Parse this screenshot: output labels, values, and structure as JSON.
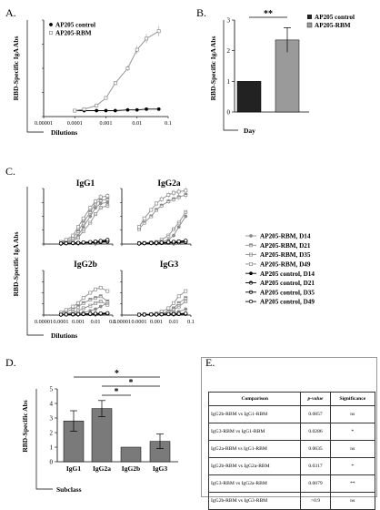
{
  "panels": {
    "A": "A.",
    "B": "B.",
    "C": "C.",
    "D": "D.",
    "E": "E."
  },
  "chart_data": [
    {
      "id": "A",
      "type": "line",
      "ylabel": "RBD-Specific IgA Abs",
      "xlabel": "Dilutions",
      "xscale": "log",
      "xticks": [
        "0.00001",
        "0.0001",
        "0.001",
        "0.01",
        "0.1"
      ],
      "legend": [
        "AP205 control",
        "AP205-RBM"
      ],
      "legend_position": "top-left",
      "series": [
        {
          "name": "AP205 control",
          "x": [
            0.0001,
            0.0002,
            0.0005,
            0.001,
            0.002,
            0.005,
            0.01,
            0.02,
            0.05
          ],
          "y": [
            0.08,
            0.08,
            0.08,
            0.08,
            0.08,
            0.09,
            0.09,
            0.1,
            0.1
          ]
        },
        {
          "name": "AP205-RBM",
          "x": [
            0.0001,
            0.0002,
            0.0005,
            0.001,
            0.002,
            0.005,
            0.01,
            0.02,
            0.05
          ],
          "y": [
            0.08,
            0.1,
            0.15,
            0.25,
            0.45,
            0.65,
            0.9,
            1.05,
            1.15
          ]
        }
      ]
    },
    {
      "id": "B",
      "type": "bar",
      "ylabel": "RBD-Specific IgA Abs",
      "xlabel": "Day",
      "ylim": [
        0,
        3
      ],
      "yticks": [
        "0",
        "1",
        "2",
        "3"
      ],
      "legend": [
        "AP205 control",
        "AP205-RBM"
      ],
      "legend_position": "top-right",
      "categories": [
        "AP205 control",
        "AP205-RBM"
      ],
      "values": [
        1,
        2.35
      ],
      "errors": [
        0,
        0.4
      ],
      "significance": "**"
    },
    {
      "id": "C",
      "type": "line",
      "ylabel": "RBD-Specific IgA Abs",
      "xlabel": "Dilutions",
      "xscale": "log",
      "xticks": [
        "0.00001",
        "0.0001",
        "0.001",
        "0.01",
        "0.1"
      ],
      "x": [
        0.0001,
        0.0002,
        0.0005,
        0.001,
        0.002,
        0.005,
        0.01,
        0.02,
        0.05
      ],
      "legend": [
        "AP205-RBM, D14",
        "AP205-RBM, D21",
        "AP205-RBM, D35",
        "AP205-RBM, D49",
        "AP205 control, D14",
        "AP205 control, D21",
        "AP205 control, D35",
        "AP205 control, D49"
      ],
      "subplots": [
        {
          "title": "IgG1",
          "series": [
            {
              "name": "AP205-RBM, D14",
              "y": [
                0.05,
                0.1,
                0.2,
                0.4,
                0.8,
                1.3,
                1.7,
                1.9,
                1.95
              ]
            },
            {
              "name": "AP205-RBM, D21",
              "y": [
                0.08,
                0.15,
                0.3,
                0.6,
                1.0,
                1.5,
                1.9,
                2.05,
                2.1
              ]
            },
            {
              "name": "AP205-RBM, D35",
              "y": [
                0.05,
                0.08,
                0.15,
                0.3,
                0.6,
                1.0,
                1.4,
                1.7,
                1.8
              ]
            },
            {
              "name": "AP205-RBM, D49",
              "y": [
                0.1,
                0.2,
                0.4,
                0.8,
                1.2,
                1.7,
                2.0,
                2.2,
                2.25
              ]
            },
            {
              "name": "AP205 control, D14",
              "y": [
                0.02,
                0.03,
                0.03,
                0.04,
                0.05,
                0.06,
                0.07,
                0.08,
                0.1
              ]
            },
            {
              "name": "AP205 control, D21",
              "y": [
                0.03,
                0.04,
                0.05,
                0.06,
                0.07,
                0.08,
                0.1,
                0.12,
                0.15
              ]
            },
            {
              "name": "AP205 control, D35",
              "y": [
                0.02,
                0.03,
                0.04,
                0.05,
                0.06,
                0.07,
                0.08,
                0.1,
                0.12
              ]
            },
            {
              "name": "AP205 control, D49",
              "y": [
                0.03,
                0.04,
                0.05,
                0.06,
                0.08,
                0.1,
                0.12,
                0.15,
                0.2
              ]
            }
          ]
        },
        {
          "title": "IgG2a",
          "series": [
            {
              "name": "AP205-RBM, D14",
              "y": [
                0.05,
                0.05,
                0.06,
                0.08,
                0.1,
                0.2,
                0.4,
                0.8,
                1.3
              ]
            },
            {
              "name": "AP205-RBM, D21",
              "y": [
                0.7,
                1.0,
                1.3,
                1.6,
                1.8,
                2.0,
                2.1,
                2.2,
                2.3
              ]
            },
            {
              "name": "AP205-RBM, D35",
              "y": [
                0.05,
                0.06,
                0.08,
                0.1,
                0.2,
                0.4,
                0.7,
                1.0,
                1.5
              ]
            },
            {
              "name": "AP205-RBM, D49",
              "y": [
                0.8,
                1.2,
                1.6,
                1.9,
                2.1,
                2.3,
                2.4,
                2.45,
                2.5
              ]
            },
            {
              "name": "AP205 control, D14",
              "y": [
                0.02,
                0.03,
                0.03,
                0.04,
                0.04,
                0.05,
                0.06,
                0.07,
                0.08
              ]
            },
            {
              "name": "AP205 control, D21",
              "y": [
                0.03,
                0.04,
                0.05,
                0.06,
                0.07,
                0.08,
                0.1,
                0.12,
                0.15
              ]
            },
            {
              "name": "AP205 control, D35",
              "y": [
                0.02,
                0.03,
                0.04,
                0.05,
                0.05,
                0.06,
                0.07,
                0.08,
                0.1
              ]
            },
            {
              "name": "AP205 control, D49",
              "y": [
                0.03,
                0.04,
                0.05,
                0.06,
                0.07,
                0.09,
                0.11,
                0.13,
                0.16
              ]
            }
          ]
        },
        {
          "title": "IgG2b",
          "series": [
            {
              "name": "AP205-RBM, D14",
              "y": [
                0.05,
                0.06,
                0.08,
                0.1,
                0.15,
                0.25,
                0.35,
                0.5,
                0.7
              ]
            },
            {
              "name": "AP205-RBM, D21",
              "y": [
                0.1,
                0.2,
                0.35,
                0.5,
                0.7,
                0.9,
                1.0,
                1.1,
                0.8
              ]
            },
            {
              "name": "AP205-RBM, D35",
              "y": [
                0.05,
                0.08,
                0.15,
                0.25,
                0.4,
                0.55,
                0.7,
                0.8,
                0.6
              ]
            },
            {
              "name": "AP205-RBM, D49",
              "y": [
                0.15,
                0.3,
                0.5,
                0.7,
                1.0,
                1.3,
                1.5,
                1.6,
                1.4
              ]
            },
            {
              "name": "AP205 control, D14",
              "y": [
                0.02,
                0.03,
                0.03,
                0.04,
                0.04,
                0.05,
                0.05,
                0.06,
                0.07
              ]
            },
            {
              "name": "AP205 control, D21",
              "y": [
                0.03,
                0.03,
                0.04,
                0.05,
                0.06,
                0.07,
                0.08,
                0.09,
                0.1
              ]
            },
            {
              "name": "AP205 control, D35",
              "y": [
                0.02,
                0.03,
                0.03,
                0.04,
                0.05,
                0.05,
                0.06,
                0.07,
                0.08
              ]
            },
            {
              "name": "AP205 control, D49",
              "y": [
                0.03,
                0.04,
                0.05,
                0.06,
                0.07,
                0.08,
                0.09,
                0.1,
                0.12
              ]
            }
          ]
        },
        {
          "title": "IgG3",
          "series": [
            {
              "name": "AP205-RBM, D14",
              "y": [
                0.03,
                0.03,
                0.04,
                0.05,
                0.06,
                0.08,
                0.12,
                0.2,
                0.35
              ]
            },
            {
              "name": "AP205-RBM, D21",
              "y": [
                0.03,
                0.04,
                0.05,
                0.06,
                0.1,
                0.2,
                0.4,
                0.7,
                1.0
              ]
            },
            {
              "name": "AP205-RBM, D35",
              "y": [
                0.03,
                0.03,
                0.04,
                0.05,
                0.08,
                0.15,
                0.3,
                0.5,
                0.8
              ]
            },
            {
              "name": "AP205-RBM, D49",
              "y": [
                0.04,
                0.05,
                0.06,
                0.1,
                0.2,
                0.4,
                0.7,
                1.1,
                1.4
              ]
            },
            {
              "name": "AP205 control, D14",
              "y": [
                0.02,
                0.02,
                0.03,
                0.03,
                0.04,
                0.04,
                0.05,
                0.05,
                0.06
              ]
            },
            {
              "name": "AP205 control, D21",
              "y": [
                0.02,
                0.03,
                0.03,
                0.04,
                0.04,
                0.05,
                0.06,
                0.07,
                0.08
              ]
            },
            {
              "name": "AP205 control, D35",
              "y": [
                0.02,
                0.02,
                0.03,
                0.03,
                0.04,
                0.05,
                0.05,
                0.06,
                0.07
              ]
            },
            {
              "name": "AP205 control, D49",
              "y": [
                0.02,
                0.03,
                0.04,
                0.04,
                0.05,
                0.06,
                0.07,
                0.08,
                0.1
              ]
            }
          ]
        }
      ]
    },
    {
      "id": "D",
      "type": "bar",
      "ylabel": "RBD-Specific Abs",
      "xlabel": "Subclass",
      "ylim": [
        0,
        5
      ],
      "yticks": [
        "0",
        "1",
        "2",
        "3",
        "4",
        "5"
      ],
      "categories": [
        "IgG1",
        "IgG2a",
        "IgG2b",
        "IgG3"
      ],
      "values": [
        2.8,
        3.65,
        1.0,
        1.4
      ],
      "errors": [
        0.7,
        0.55,
        0,
        0.5
      ],
      "significance": [
        "*",
        "*",
        "*"
      ]
    }
  ],
  "table": {
    "headers": [
      "Comparison",
      "p-value",
      "Significance"
    ],
    "rows": [
      [
        "IgG2b-RBM  vs  IgG1-RBM",
        "0.0857",
        "ns"
      ],
      [
        "IgG3-RBM  vs  IgG1-RBM",
        "0.0286",
        "*"
      ],
      [
        "IgG2a-RBM  vs  IgG1-RBM",
        "0.0635",
        "ns"
      ],
      [
        "IgG2b-RBM  vs  IgG2a-RBM",
        "0.0317",
        "*"
      ],
      [
        "IgG3-RBM  vs  IgG2a-RBM",
        "0.0079",
        "**"
      ],
      [
        "IgG2b-RBM  vs  IgG3-RBM",
        ">0.9",
        "ns"
      ]
    ]
  },
  "colors": {
    "rbm": "#8c8c8c",
    "control": "#000000",
    "bar_control": "#222222",
    "bar_rbm": "#9a9a9a",
    "bar_d": "#7a7a7a"
  }
}
